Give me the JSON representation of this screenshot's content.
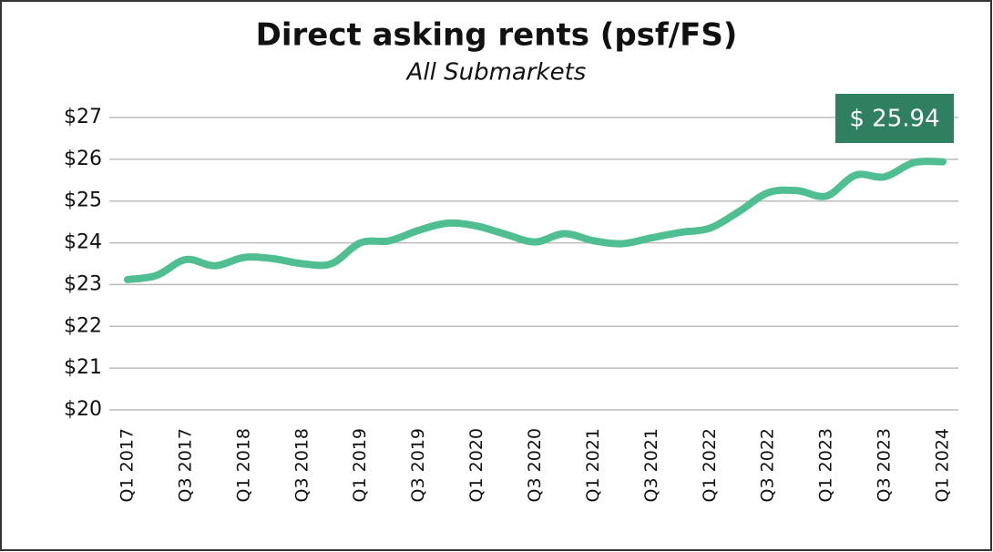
{
  "chart_data": {
    "type": "line",
    "title": "Direct asking rents (psf/FS)",
    "subtitle": "All Submarkets",
    "categories": [
      "Q1 2017",
      null,
      "Q3 2017",
      null,
      "Q1 2018",
      null,
      "Q3 2018",
      null,
      "Q1 2019",
      null,
      "Q3 2019",
      null,
      "Q1 2020",
      null,
      "Q3 2020",
      null,
      "Q1 2021",
      null,
      "Q3 2021",
      null,
      "Q1 2022",
      null,
      "Q3 2022",
      null,
      "Q1 2023",
      null,
      "Q3 2023",
      null,
      "Q1 2024"
    ],
    "series": [
      {
        "name": "Direct asking rent",
        "color": "#4fbf92",
        "values": [
          23.12,
          23.22,
          23.6,
          23.45,
          23.65,
          23.62,
          23.5,
          23.5,
          24.0,
          24.05,
          24.3,
          24.47,
          24.4,
          24.2,
          24.02,
          24.22,
          24.05,
          23.98,
          24.12,
          24.25,
          24.35,
          24.75,
          25.2,
          25.25,
          25.12,
          25.62,
          25.58,
          25.92,
          25.94
        ],
        "value_labels": [
          null,
          null,
          null,
          null,
          null,
          null,
          null,
          null,
          null,
          null,
          null,
          null,
          null,
          null,
          null,
          null,
          null,
          null,
          null,
          null,
          null,
          null,
          null,
          null,
          null,
          null,
          null,
          null,
          "$ 25.94"
        ]
      }
    ],
    "label_color": "#2e8060",
    "ylim": [
      20,
      27
    ],
    "yticks": [
      {
        "value": 20,
        "label": "$20"
      },
      {
        "value": 21,
        "label": "$21"
      },
      {
        "value": 22,
        "label": "$22"
      },
      {
        "value": 23,
        "label": "$23"
      },
      {
        "value": 24,
        "label": "$24"
      },
      {
        "value": 25,
        "label": "$25"
      },
      {
        "value": 26,
        "label": "$26"
      },
      {
        "value": 27,
        "label": "$27"
      }
    ],
    "grid": true
  }
}
